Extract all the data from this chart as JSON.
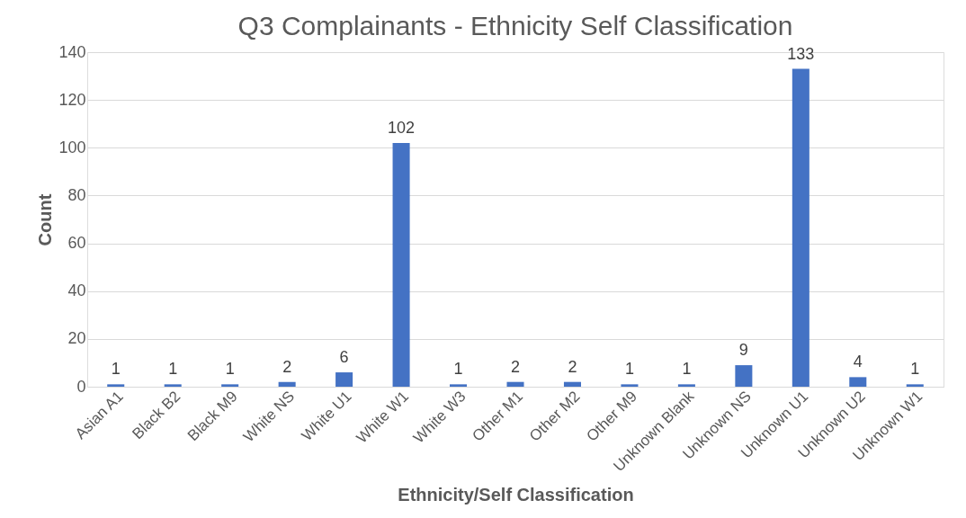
{
  "chart_data": {
    "type": "bar",
    "title": "Q3 Complainants - Ethnicity Self Classification",
    "xlabel": "Ethnicity/Self Classification",
    "ylabel": "Count",
    "categories": [
      "Asian A1",
      "Black B2",
      "Black M9",
      "White NS",
      "White U1",
      "White W1",
      "White W3",
      "Other M1",
      "Other M2",
      "Other M9",
      "Unknown Blank",
      "Unknown NS",
      "Unknown U1",
      "Unknown U2",
      "Unknown W1"
    ],
    "values": [
      1,
      1,
      1,
      2,
      6,
      102,
      1,
      2,
      2,
      1,
      1,
      9,
      133,
      4,
      1
    ],
    "color": "#4472c4",
    "ylim": [
      0,
      140
    ],
    "yticks": [
      0,
      20,
      40,
      60,
      80,
      100,
      120,
      140
    ],
    "grid": "y",
    "data_labels": true
  }
}
